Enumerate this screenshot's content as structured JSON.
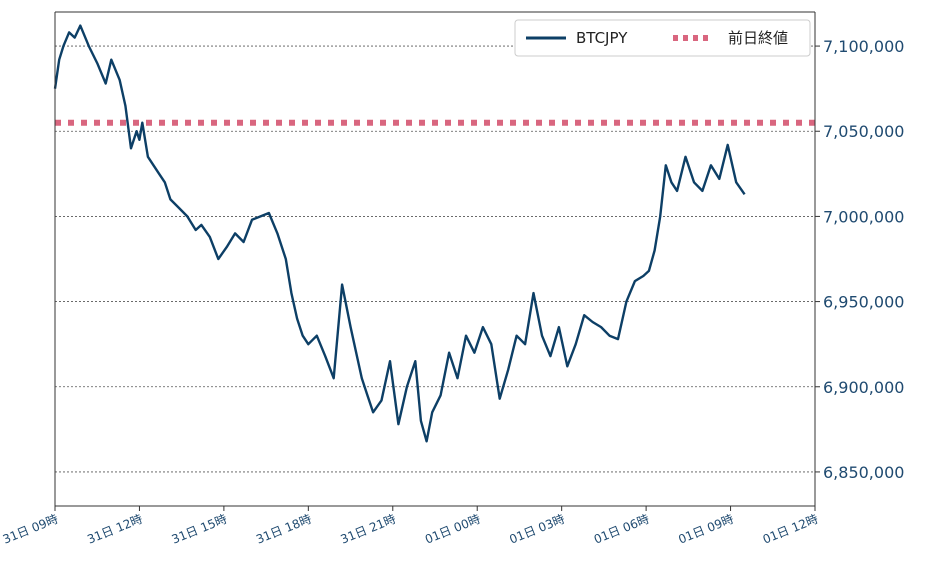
{
  "chart_data": {
    "type": "line",
    "title": "",
    "xlabel": "",
    "ylabel": "",
    "x_tick_labels": [
      "31日 09時",
      "31日 12時",
      "31日 15時",
      "31日 18時",
      "31日 21時",
      "01日 00時",
      "01日 03時",
      "01日 06時",
      "01日 09時",
      "01日 12時"
    ],
    "x_range_hours": [
      0,
      27
    ],
    "ylim": [
      6830000,
      7120000
    ],
    "y_ticks": [
      6850000,
      6900000,
      6950000,
      7000000,
      7050000,
      7100000
    ],
    "y_tick_labels": [
      "6,850,000",
      "6,900,000",
      "6,950,000",
      "7,000,000",
      "7,050,000",
      "7,100,000"
    ],
    "grid": "horizontal-dashed",
    "legend_position": "top-right",
    "colors": {
      "btc": "#0d3f66",
      "prev_close": "#d9667f",
      "axis": "#333333"
    },
    "series": [
      {
        "name": "BTCJPY",
        "x_hours": [
          0,
          0.15,
          0.3,
          0.5,
          0.7,
          0.9,
          1.2,
          1.5,
          1.8,
          2.0,
          2.3,
          2.5,
          2.7,
          2.9,
          3.0,
          3.1,
          3.3,
          3.5,
          3.7,
          3.9,
          4.1,
          4.4,
          4.7,
          5.0,
          5.2,
          5.5,
          5.8,
          6.1,
          6.4,
          6.7,
          7.0,
          7.3,
          7.6,
          7.9,
          8.2,
          8.4,
          8.6,
          8.8,
          9.0,
          9.3,
          9.6,
          9.9,
          10.2,
          10.5,
          10.7,
          10.9,
          11.1,
          11.3,
          11.6,
          11.9,
          12.2,
          12.5,
          12.8,
          13.0,
          13.2,
          13.4,
          13.7,
          14.0,
          14.3,
          14.6,
          14.9,
          15.2,
          15.5,
          15.8,
          16.1,
          16.4,
          16.7,
          17.0,
          17.3,
          17.6,
          17.9,
          18.2,
          18.5,
          18.8,
          19.1,
          19.4,
          19.7,
          20.0,
          20.3,
          20.6,
          20.9,
          21.1,
          21.3,
          21.5,
          21.7,
          21.9,
          22.1,
          22.4,
          22.7,
          23.0,
          23.3,
          23.6,
          23.9,
          24.2,
          24.5
        ],
        "values": [
          7075000,
          7092000,
          7100000,
          7108000,
          7105000,
          7112000,
          7100000,
          7090000,
          7078000,
          7092000,
          7080000,
          7065000,
          7040000,
          7050000,
          7045000,
          7055000,
          7035000,
          7030000,
          7025000,
          7020000,
          7010000,
          7005000,
          7000000,
          6992000,
          6995000,
          6988000,
          6975000,
          6982000,
          6990000,
          6985000,
          6998000,
          7000000,
          7002000,
          6990000,
          6975000,
          6955000,
          6940000,
          6930000,
          6925000,
          6930000,
          6918000,
          6905000,
          6960000,
          6935000,
          6920000,
          6905000,
          6895000,
          6885000,
          6892000,
          6915000,
          6878000,
          6900000,
          6915000,
          6880000,
          6868000,
          6885000,
          6895000,
          6920000,
          6905000,
          6930000,
          6920000,
          6935000,
          6925000,
          6893000,
          6910000,
          6930000,
          6925000,
          6955000,
          6930000,
          6918000,
          6935000,
          6912000,
          6925000,
          6942000,
          6938000,
          6935000,
          6930000,
          6928000,
          6950000,
          6962000,
          6965000,
          6968000,
          6980000,
          7000000,
          7030000,
          7020000,
          7015000,
          7035000,
          7020000,
          7015000,
          7030000,
          7022000,
          7042000,
          7020000,
          7013000
        ]
      },
      {
        "name": "前日終値",
        "values": [
          7055000
        ],
        "style": "dotted-horizontal"
      }
    ]
  }
}
